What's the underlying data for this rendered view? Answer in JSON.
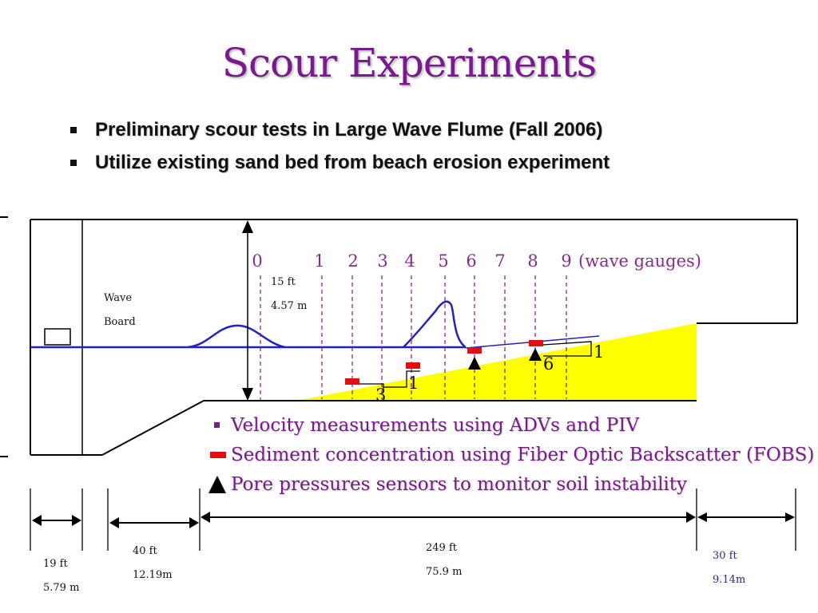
{
  "title": "Scour Experiments",
  "bullets": [
    "Preliminary scour tests in Large Wave Flume (Fall 2006)",
    "Utilize existing sand bed from beach erosion experiment"
  ],
  "diagram": {
    "wave_board_label": [
      "Wave",
      "Board"
    ],
    "gauge_numbers": [
      "0",
      "1",
      "2",
      "3",
      "4",
      "5",
      "6",
      "7",
      "8",
      "9"
    ],
    "gauge_caption": "(wave gauges)",
    "depth_label": [
      "15 ft",
      "4.57 m"
    ],
    "callouts": [
      "3",
      "1",
      "6",
      "1"
    ],
    "colors": {
      "water": "#2222bb",
      "sand": "#ffff00",
      "gauge": "#8a2a8a",
      "fobs": "#e01010"
    }
  },
  "legend": [
    {
      "icon": "square-bullet-icon",
      "text": "Velocity measurements using ADVs and PIV"
    },
    {
      "icon": "fobs-sensor-icon",
      "text": "Sediment concentration using Fiber Optic Backscatter (FOBS)"
    },
    {
      "icon": "pore-pressure-triangle-icon",
      "text": "Pore pressures sensors to monitor soil instability"
    }
  ],
  "dimensions": [
    [
      "19 ft",
      "5.79 m"
    ],
    [
      "40 ft",
      "12.19m"
    ],
    [
      "249 ft",
      "75.9 m"
    ],
    [
      "30 ft",
      "9.14m"
    ]
  ]
}
